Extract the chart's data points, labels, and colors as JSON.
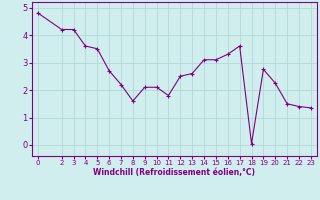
{
  "x": [
    0,
    2,
    3,
    4,
    5,
    6,
    7,
    8,
    9,
    10,
    11,
    12,
    13,
    14,
    15,
    16,
    17,
    18,
    19,
    20,
    21,
    22,
    23
  ],
  "y": [
    4.8,
    4.2,
    4.2,
    3.6,
    3.5,
    2.7,
    2.2,
    1.6,
    2.1,
    2.1,
    1.8,
    2.5,
    2.6,
    3.1,
    3.1,
    3.3,
    3.6,
    0.05,
    2.75,
    2.25,
    1.5,
    1.4,
    1.35
  ],
  "line_color": "#800080",
  "marker": "+",
  "marker_size": 3,
  "bg_color": "#d0eeee",
  "grid_color": "#b0d8d8",
  "xlabel": "Windchill (Refroidissement éolien,°C)",
  "xlabel_color": "#800080",
  "tick_color": "#800080",
  "ylim": [
    -0.4,
    5.2
  ],
  "xlim": [
    -0.5,
    23.5
  ],
  "yticks": [
    0,
    1,
    2,
    3,
    4,
    5
  ],
  "xticks": [
    0,
    2,
    3,
    4,
    5,
    6,
    7,
    8,
    9,
    10,
    11,
    12,
    13,
    14,
    15,
    16,
    17,
    18,
    19,
    20,
    21,
    22,
    23
  ],
  "tick_fontsize": 5,
  "xlabel_fontsize": 5.5
}
